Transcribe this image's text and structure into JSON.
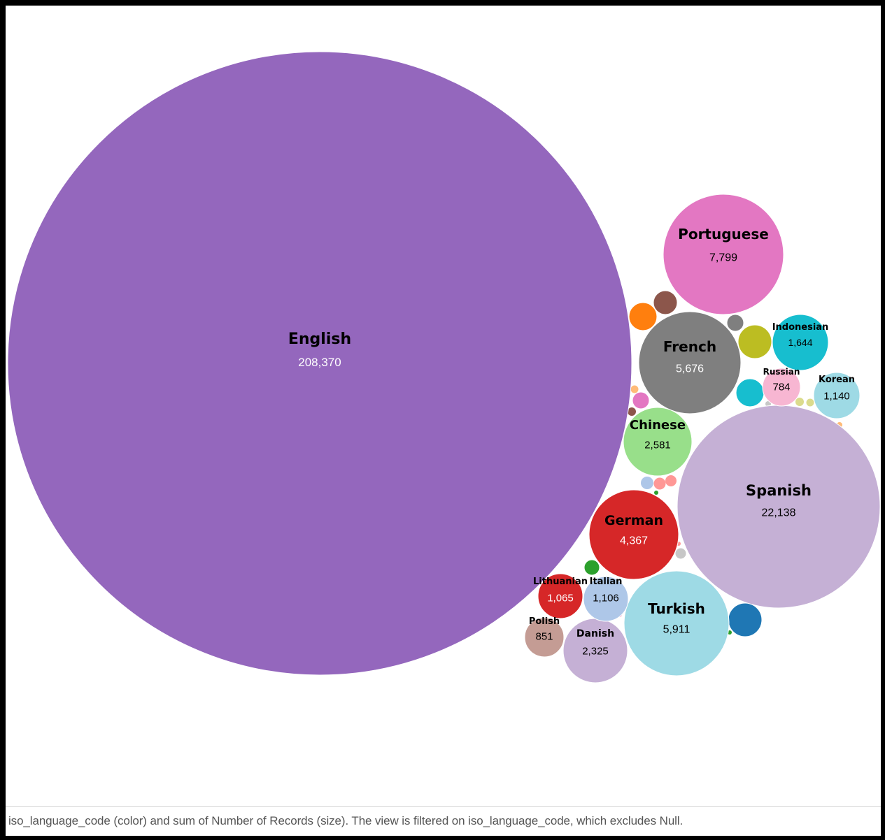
{
  "chart_data": {
    "type": "bubble",
    "title": "",
    "size_measure": "sum of Number of Records",
    "color_dimension": "iso_language_code",
    "bubbles": [
      {
        "label": "English",
        "value": 208370,
        "color": "#9467bd"
      },
      {
        "label": "Spanish",
        "value": 22138,
        "color": "#c5b0d5"
      },
      {
        "label": "Portuguese",
        "value": 7799,
        "color": "#e377c2"
      },
      {
        "label": "Turkish",
        "value": 5911,
        "color": "#9edae5"
      },
      {
        "label": "French",
        "value": 5676,
        "color": "#7f7f7f"
      },
      {
        "label": "German",
        "value": 4367,
        "color": "#d62728"
      },
      {
        "label": "Chinese",
        "value": 2581,
        "color": "#98df8a"
      },
      {
        "label": "Danish",
        "value": 2325,
        "color": "#c5b0d5"
      },
      {
        "label": "Indonesian",
        "value": 1644,
        "color": "#17becf"
      },
      {
        "label": "Korean",
        "value": 1140,
        "color": "#9edae5"
      },
      {
        "label": "Italian",
        "value": 1106,
        "color": "#aec7e8"
      },
      {
        "label": "Lithuanian",
        "value": 1065,
        "color": "#d62728"
      },
      {
        "label": "Polish",
        "value": 851,
        "color": "#c49c94"
      },
      {
        "label": "Russian",
        "value": 784,
        "color": "#f7b6d2"
      }
    ],
    "unlabeled_bubbles_colors": [
      "#ff7f0e",
      "#8c564b",
      "#bcbd22",
      "#17becf",
      "#7f7f7f",
      "#2ca02c",
      "#e377c2",
      "#1f77b4",
      "#ffbb78",
      "#dbdb8d",
      "#ff9896",
      "#c7c7c7"
    ]
  },
  "caption": "iso_language_code (color) and sum of Number of Records (size). The view is filtered on iso_language_code, which excludes Null."
}
